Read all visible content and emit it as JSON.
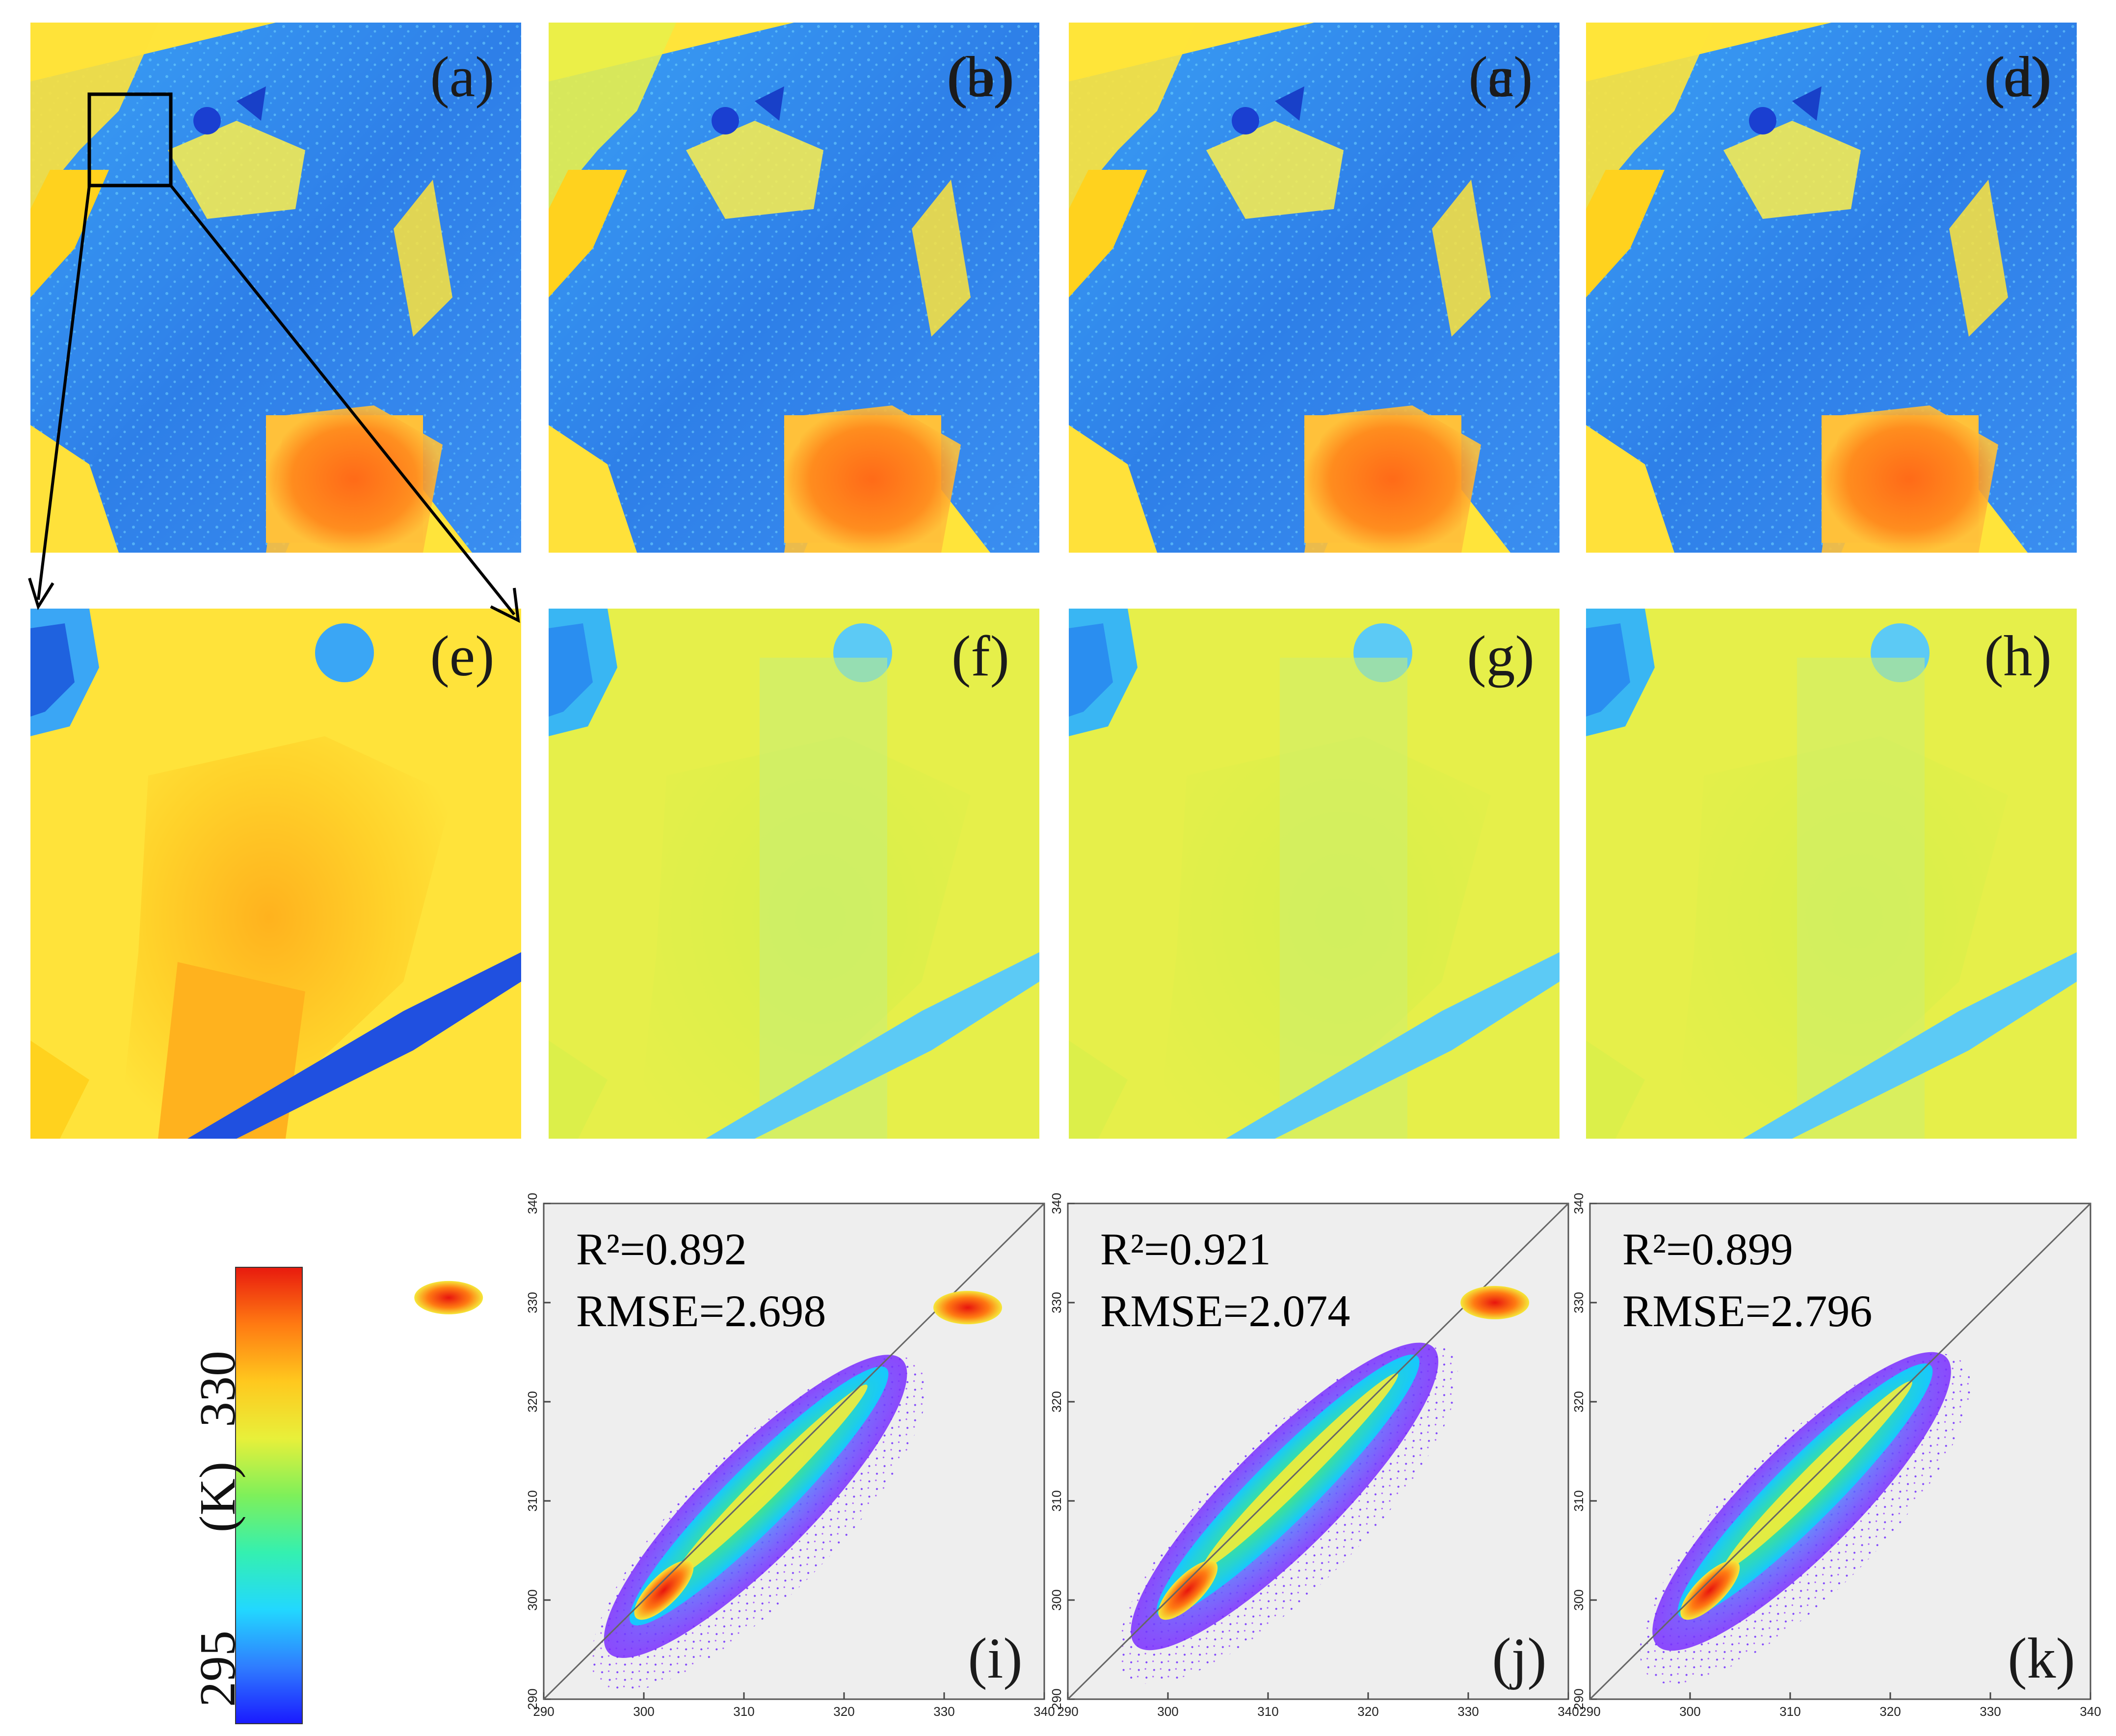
{
  "figure": {
    "map_panels": [
      {
        "label": "(a)"
      },
      {
        "label": "(b)"
      },
      {
        "label": "(c)"
      },
      {
        "label": "(d)"
      }
    ],
    "zoom_panels": [
      {
        "label": "(e)"
      },
      {
        "label": "(f)"
      },
      {
        "label": "(g)"
      },
      {
        "label": "(h)"
      }
    ],
    "colorbar": {
      "unit": "(K)",
      "min_label": "295",
      "max_label": "330",
      "colors": [
        "#1a1aff",
        "#2f7dff",
        "#22d8ff",
        "#34f0b0",
        "#7ef05a",
        "#e8f03a",
        "#ffc81e",
        "#ff7a12",
        "#e81a0e"
      ]
    }
  },
  "chart_data": [
    {
      "type": "scatter",
      "label": "(i)",
      "r2_text": "R²=0.892",
      "rmse_text": "RMSE=2.698",
      "x_ticks": [
        "290",
        "300",
        "310",
        "320",
        "330",
        "340"
      ],
      "y_ticks": [
        "290",
        "300",
        "310",
        "320",
        "330",
        "340"
      ],
      "xlim": [
        290,
        340
      ],
      "ylim": [
        290,
        340
      ],
      "reference_line": "1:1",
      "density_core": {
        "x_center": 302,
        "y_center": 301
      },
      "point_cloud_extent": {
        "x": [
          296,
          327
        ],
        "y": [
          294,
          327
        ]
      }
    },
    {
      "type": "scatter",
      "label": "(j)",
      "r2_text": "R²=0.921",
      "rmse_text": "RMSE=2.074",
      "x_ticks": [
        "290",
        "300",
        "310",
        "320",
        "330",
        "340"
      ],
      "y_ticks": [
        "290",
        "300",
        "310",
        "320",
        "330",
        "340"
      ],
      "xlim": [
        290,
        340
      ],
      "ylim": [
        290,
        340
      ],
      "reference_line": "1:1",
      "density_core": {
        "x_center": 302,
        "y_center": 301
      },
      "point_cloud_extent": {
        "x": [
          296,
          328
        ],
        "y": [
          295,
          328
        ]
      }
    },
    {
      "type": "scatter",
      "label": "(k)",
      "r2_text": "R²=0.899",
      "rmse_text": "RMSE=2.796",
      "x_ticks": [
        "290",
        "300",
        "310",
        "320",
        "330",
        "340"
      ],
      "y_ticks": [
        "290",
        "300",
        "310",
        "320",
        "330",
        "340"
      ],
      "xlim": [
        290,
        340
      ],
      "ylim": [
        290,
        340
      ],
      "reference_line": "1:1",
      "density_core": {
        "x_center": 302,
        "y_center": 301
      },
      "point_cloud_extent": {
        "x": [
          296,
          327
        ],
        "y": [
          295,
          327
        ]
      }
    }
  ]
}
